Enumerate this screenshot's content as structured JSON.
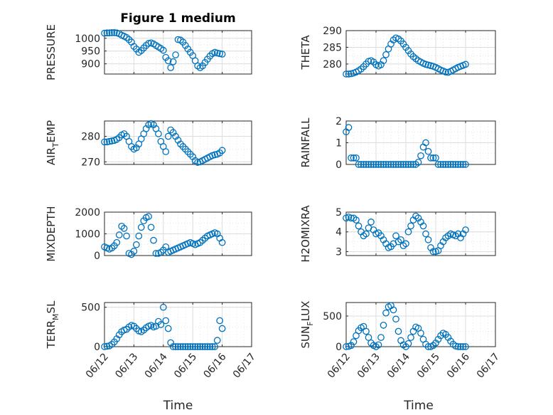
{
  "figure": {
    "title": "Figure 1 medium",
    "xlabel": "Time",
    "x_tick_labels": [
      "06/12",
      "06/13",
      "06/14",
      "06/15",
      "06/16",
      "06/17"
    ],
    "marker_color": "#0072bd"
  },
  "chart_data": [
    {
      "type": "scatter",
      "title": "Figure 1 medium",
      "ylabel": "PRESSURE",
      "yticks": [
        900,
        950,
        1000
      ],
      "ylim": [
        860,
        1030
      ],
      "x": [
        "06/12 00:00",
        "06/12 02:00",
        "06/12 04:00",
        "06/12 06:00",
        "06/12 08:00",
        "06/12 10:00",
        "06/12 12:00",
        "06/12 14:00",
        "06/12 16:00",
        "06/12 18:00",
        "06/12 20:00",
        "06/12 22:00",
        "06/13 00:00",
        "06/13 02:00",
        "06/13 04:00",
        "06/13 06:00",
        "06/13 08:00",
        "06/13 10:00",
        "06/13 12:00",
        "06/13 14:00",
        "06/13 16:00",
        "06/13 18:00",
        "06/13 20:00",
        "06/13 22:00",
        "06/14 00:00",
        "06/14 02:00",
        "06/14 04:00",
        "06/14 06:00",
        "06/14 08:00",
        "06/14 10:00",
        "06/14 12:00",
        "06/14 14:00",
        "06/14 16:00",
        "06/14 18:00",
        "06/14 20:00",
        "06/14 22:00",
        "06/15 00:00",
        "06/15 02:00",
        "06/15 04:00",
        "06/15 06:00",
        "06/15 08:00",
        "06/15 10:00",
        "06/15 12:00",
        "06/15 14:00",
        "06/15 16:00",
        "06/15 18:00",
        "06/15 20:00",
        "06/15 22:00",
        "06/16 00:00"
      ],
      "y": [
        1020,
        1021,
        1021,
        1022,
        1022,
        1021,
        1018,
        1012,
        1008,
        1003,
        995,
        985,
        968,
        958,
        945,
        952,
        962,
        972,
        980,
        982,
        978,
        972,
        966,
        960,
        953,
        925,
        912,
        885,
        908,
        935,
        995,
        993,
        985,
        972,
        958,
        945,
        932,
        912,
        892,
        885,
        892,
        905,
        918,
        930,
        940,
        945,
        942,
        940,
        938
      ]
    },
    {
      "type": "scatter",
      "title": "",
      "ylabel": "THETA",
      "yticks": [
        280,
        285,
        290
      ],
      "ylim": [
        277,
        290
      ],
      "x": [
        "06/12 00:00",
        "06/12 02:00",
        "06/12 04:00",
        "06/12 06:00",
        "06/12 08:00",
        "06/12 10:00",
        "06/12 12:00",
        "06/12 14:00",
        "06/12 16:00",
        "06/12 18:00",
        "06/12 20:00",
        "06/12 22:00",
        "06/13 00:00",
        "06/13 02:00",
        "06/13 04:00",
        "06/13 06:00",
        "06/13 08:00",
        "06/13 10:00",
        "06/13 12:00",
        "06/13 14:00",
        "06/13 16:00",
        "06/13 18:00",
        "06/13 20:00",
        "06/13 22:00",
        "06/14 00:00",
        "06/14 02:00",
        "06/14 04:00",
        "06/14 06:00",
        "06/14 08:00",
        "06/14 10:00",
        "06/14 12:00",
        "06/14 14:00",
        "06/14 16:00",
        "06/14 18:00",
        "06/14 20:00",
        "06/14 22:00",
        "06/15 00:00",
        "06/15 02:00",
        "06/15 04:00",
        "06/15 06:00",
        "06/15 08:00",
        "06/15 10:00",
        "06/15 12:00",
        "06/15 14:00",
        "06/15 16:00",
        "06/15 18:00",
        "06/15 20:00",
        "06/15 22:00",
        "06/16 00:00"
      ],
      "y": [
        277.0,
        277.0,
        277.1,
        277.3,
        277.6,
        278.0,
        278.5,
        279.2,
        280.0,
        280.8,
        281.0,
        280.6,
        279.8,
        279.4,
        279.8,
        281.0,
        282.8,
        284.5,
        286.0,
        287.2,
        287.8,
        287.5,
        286.9,
        286.0,
        285.0,
        284.0,
        283.0,
        282.2,
        281.6,
        281.0,
        280.6,
        280.2,
        279.9,
        279.7,
        279.5,
        279.3,
        279.0,
        278.6,
        278.2,
        277.9,
        277.6,
        277.5,
        277.8,
        278.2,
        278.6,
        279.0,
        279.3,
        279.6,
        279.9
      ]
    },
    {
      "type": "scatter",
      "title": "",
      "ylabel": "AIR_TEMP",
      "yticks": [
        270,
        280
      ],
      "ylim": [
        269,
        286
      ],
      "x": [
        "06/12 00:00",
        "06/12 02:00",
        "06/12 04:00",
        "06/12 06:00",
        "06/12 08:00",
        "06/12 10:00",
        "06/12 12:00",
        "06/12 14:00",
        "06/12 16:00",
        "06/12 18:00",
        "06/12 20:00",
        "06/12 22:00",
        "06/13 00:00",
        "06/13 02:00",
        "06/13 04:00",
        "06/13 06:00",
        "06/13 08:00",
        "06/13 10:00",
        "06/13 12:00",
        "06/13 14:00",
        "06/13 16:00",
        "06/13 18:00",
        "06/13 20:00",
        "06/13 22:00",
        "06/14 00:00",
        "06/14 02:00",
        "06/14 04:00",
        "06/14 06:00",
        "06/14 08:00",
        "06/14 10:00",
        "06/14 12:00",
        "06/14 14:00",
        "06/14 16:00",
        "06/14 18:00",
        "06/14 20:00",
        "06/14 22:00",
        "06/15 00:00",
        "06/15 02:00",
        "06/15 04:00",
        "06/15 06:00",
        "06/15 08:00",
        "06/15 10:00",
        "06/15 12:00",
        "06/15 14:00",
        "06/15 16:00",
        "06/15 18:00",
        "06/15 20:00",
        "06/15 22:00",
        "06/16 00:00"
      ],
      "y": [
        277.8,
        277.8,
        278.0,
        278.2,
        278.4,
        278.8,
        279.5,
        280.5,
        281.0,
        280.0,
        278.0,
        276.0,
        275.0,
        275.5,
        277.0,
        279.0,
        281.0,
        283.0,
        284.5,
        285.0,
        284.5,
        283.0,
        281.0,
        278.0,
        276.0,
        274.0,
        280.0,
        282.5,
        281.5,
        280.0,
        278.5,
        277.0,
        276.0,
        275.0,
        274.0,
        273.0,
        272.0,
        270.5,
        269.8,
        270.0,
        270.5,
        271.0,
        271.5,
        272.0,
        272.5,
        272.8,
        273.0,
        273.5,
        274.5
      ]
    },
    {
      "type": "scatter",
      "title": "",
      "ylabel": "RAINFALL",
      "yticks": [
        0,
        1,
        2
      ],
      "ylim": [
        0,
        2
      ],
      "x": [
        "06/12 00:00",
        "06/12 02:00",
        "06/12 04:00",
        "06/12 06:00",
        "06/12 08:00",
        "06/12 10:00",
        "06/12 12:00",
        "06/12 14:00",
        "06/12 16:00",
        "06/12 18:00",
        "06/12 20:00",
        "06/12 22:00",
        "06/13 00:00",
        "06/13 02:00",
        "06/13 04:00",
        "06/13 06:00",
        "06/13 08:00",
        "06/13 10:00",
        "06/13 12:00",
        "06/13 14:00",
        "06/13 16:00",
        "06/13 18:00",
        "06/13 20:00",
        "06/13 22:00",
        "06/14 00:00",
        "06/14 02:00",
        "06/14 04:00",
        "06/14 06:00",
        "06/14 08:00",
        "06/14 10:00",
        "06/14 12:00",
        "06/14 14:00",
        "06/14 16:00",
        "06/14 18:00",
        "06/14 20:00",
        "06/14 22:00",
        "06/15 00:00",
        "06/15 02:00",
        "06/15 04:00",
        "06/15 06:00",
        "06/15 08:00",
        "06/15 10:00",
        "06/15 12:00",
        "06/15 14:00",
        "06/15 16:00",
        "06/15 18:00",
        "06/15 20:00",
        "06/15 22:00",
        "06/16 00:00"
      ],
      "y": [
        1.5,
        1.7,
        0.3,
        0.3,
        0.3,
        0,
        0,
        0,
        0,
        0,
        0,
        0,
        0,
        0,
        0,
        0,
        0,
        0,
        0,
        0,
        0,
        0,
        0,
        0,
        0,
        0,
        0,
        0,
        0,
        0.1,
        0.4,
        0.8,
        1.0,
        0.6,
        0.3,
        0.3,
        0.3,
        0,
        0,
        0,
        0,
        0,
        0,
        0,
        0,
        0,
        0,
        0,
        0
      ]
    },
    {
      "type": "scatter",
      "title": "",
      "ylabel": "MIXDEPTH",
      "yticks": [
        0,
        1000,
        2000
      ],
      "ylim": [
        0,
        2000
      ],
      "x": [
        "06/12 00:00",
        "06/12 02:00",
        "06/12 04:00",
        "06/12 06:00",
        "06/12 08:00",
        "06/12 10:00",
        "06/12 12:00",
        "06/12 14:00",
        "06/12 16:00",
        "06/12 18:00",
        "06/12 20:00",
        "06/12 22:00",
        "06/13 00:00",
        "06/13 02:00",
        "06/13 04:00",
        "06/13 06:00",
        "06/13 08:00",
        "06/13 10:00",
        "06/13 12:00",
        "06/13 14:00",
        "06/13 16:00",
        "06/13 18:00",
        "06/13 20:00",
        "06/13 22:00",
        "06/14 00:00",
        "06/14 02:00",
        "06/14 04:00",
        "06/14 06:00",
        "06/14 08:00",
        "06/14 10:00",
        "06/14 12:00",
        "06/14 14:00",
        "06/14 16:00",
        "06/14 18:00",
        "06/14 20:00",
        "06/14 22:00",
        "06/15 00:00",
        "06/15 02:00",
        "06/15 04:00",
        "06/15 06:00",
        "06/15 08:00",
        "06/15 10:00",
        "06/15 12:00",
        "06/15 14:00",
        "06/15 16:00",
        "06/15 18:00",
        "06/15 20:00",
        "06/15 22:00",
        "06/16 00:00"
      ],
      "y": [
        400,
        350,
        300,
        350,
        450,
        600,
        950,
        1350,
        1250,
        900,
        100,
        50,
        200,
        500,
        900,
        1300,
        1600,
        1750,
        1800,
        1300,
        700,
        100,
        100,
        150,
        250,
        400,
        150,
        200,
        250,
        300,
        350,
        400,
        450,
        500,
        550,
        600,
        550,
        500,
        550,
        600,
        700,
        800,
        900,
        950,
        1000,
        1050,
        1000,
        800,
        600
      ]
    },
    {
      "type": "scatter",
      "title": "",
      "ylabel": "H2OMIXRA",
      "yticks": [
        3,
        4,
        5
      ],
      "ylim": [
        2.8,
        5
      ],
      "x": [
        "06/12 00:00",
        "06/12 02:00",
        "06/12 04:00",
        "06/12 06:00",
        "06/12 08:00",
        "06/12 10:00",
        "06/12 12:00",
        "06/12 14:00",
        "06/12 16:00",
        "06/12 18:00",
        "06/12 20:00",
        "06/12 22:00",
        "06/13 00:00",
        "06/13 02:00",
        "06/13 04:00",
        "06/13 06:00",
        "06/13 08:00",
        "06/13 10:00",
        "06/13 12:00",
        "06/13 14:00",
        "06/13 16:00",
        "06/13 18:00",
        "06/13 20:00",
        "06/13 22:00",
        "06/14 00:00",
        "06/14 02:00",
        "06/14 04:00",
        "06/14 06:00",
        "06/14 08:00",
        "06/14 10:00",
        "06/14 12:00",
        "06/14 14:00",
        "06/14 16:00",
        "06/14 18:00",
        "06/14 20:00",
        "06/14 22:00",
        "06/15 00:00",
        "06/15 02:00",
        "06/15 04:00",
        "06/15 06:00",
        "06/15 08:00",
        "06/15 10:00",
        "06/15 12:00",
        "06/15 14:00",
        "06/15 16:00",
        "06/15 18:00",
        "06/15 20:00",
        "06/15 22:00",
        "06/16 00:00"
      ],
      "y": [
        4.7,
        4.75,
        4.7,
        4.7,
        4.6,
        4.3,
        4.0,
        3.8,
        3.9,
        4.2,
        4.5,
        4.1,
        3.9,
        3.95,
        3.8,
        3.6,
        3.4,
        3.2,
        3.25,
        3.4,
        3.8,
        3.5,
        3.6,
        3.3,
        3.4,
        4.0,
        4.3,
        4.6,
        4.8,
        4.7,
        4.5,
        4.3,
        3.9,
        3.6,
        3.2,
        3.0,
        3.0,
        3.05,
        3.3,
        3.5,
        3.7,
        3.8,
        3.9,
        3.85,
        3.8,
        3.9,
        3.7,
        3.9,
        4.1
      ]
    },
    {
      "type": "scatter",
      "title": "",
      "ylabel": "TERR_MSL",
      "yticks": [
        0,
        500
      ],
      "ylim": [
        0,
        560
      ],
      "x": [
        "06/12 00:00",
        "06/12 02:00",
        "06/12 04:00",
        "06/12 06:00",
        "06/12 08:00",
        "06/12 10:00",
        "06/12 12:00",
        "06/12 14:00",
        "06/12 16:00",
        "06/12 18:00",
        "06/12 20:00",
        "06/12 22:00",
        "06/13 00:00",
        "06/13 02:00",
        "06/13 04:00",
        "06/13 06:00",
        "06/13 08:00",
        "06/13 10:00",
        "06/13 12:00",
        "06/13 14:00",
        "06/13 16:00",
        "06/13 18:00",
        "06/13 20:00",
        "06/13 22:00",
        "06/14 00:00",
        "06/14 02:00",
        "06/14 04:00",
        "06/14 06:00",
        "06/14 08:00",
        "06/14 10:00",
        "06/14 12:00",
        "06/14 14:00",
        "06/14 16:00",
        "06/14 18:00",
        "06/14 20:00",
        "06/14 22:00",
        "06/15 00:00",
        "06/15 02:00",
        "06/15 04:00",
        "06/15 06:00",
        "06/15 08:00",
        "06/15 10:00",
        "06/15 12:00",
        "06/15 14:00",
        "06/15 16:00",
        "06/15 18:00",
        "06/15 20:00",
        "06/15 22:00",
        "06/16 00:00"
      ],
      "y": [
        0,
        5,
        10,
        30,
        60,
        100,
        150,
        190,
        210,
        220,
        250,
        270,
        260,
        230,
        200,
        190,
        210,
        240,
        260,
        270,
        250,
        260,
        320,
        280,
        500,
        330,
        230,
        50,
        0,
        0,
        0,
        0,
        0,
        0,
        0,
        0,
        0,
        0,
        0,
        0,
        0,
        0,
        0,
        0,
        0,
        0,
        80,
        330,
        230
      ]
    },
    {
      "type": "scatter",
      "title": "",
      "ylabel": "SUN_FLUX",
      "yticks": [
        0,
        500
      ],
      "ylim": [
        0,
        720
      ],
      "x": [
        "06/12 00:00",
        "06/12 02:00",
        "06/12 04:00",
        "06/12 06:00",
        "06/12 08:00",
        "06/12 10:00",
        "06/12 12:00",
        "06/12 14:00",
        "06/12 16:00",
        "06/12 18:00",
        "06/12 20:00",
        "06/12 22:00",
        "06/13 00:00",
        "06/13 02:00",
        "06/13 04:00",
        "06/13 06:00",
        "06/13 08:00",
        "06/13 10:00",
        "06/13 12:00",
        "06/13 14:00",
        "06/13 16:00",
        "06/13 18:00",
        "06/13 20:00",
        "06/13 22:00",
        "06/14 00:00",
        "06/14 02:00",
        "06/14 04:00",
        "06/14 06:00",
        "06/14 08:00",
        "06/14 10:00",
        "06/14 12:00",
        "06/14 14:00",
        "06/14 16:00",
        "06/14 18:00",
        "06/14 20:00",
        "06/14 22:00",
        "06/15 00:00",
        "06/15 02:00",
        "06/15 04:00",
        "06/15 06:00",
        "06/15 08:00",
        "06/15 10:00",
        "06/15 12:00",
        "06/15 14:00",
        "06/15 16:00",
        "06/15 18:00",
        "06/15 20:00",
        "06/15 22:00",
        "06/16 00:00"
      ],
      "y": [
        0,
        5,
        20,
        80,
        180,
        260,
        310,
        330,
        250,
        150,
        60,
        20,
        0,
        30,
        150,
        350,
        550,
        650,
        670,
        600,
        450,
        250,
        100,
        30,
        0,
        50,
        150,
        250,
        320,
        300,
        220,
        120,
        40,
        0,
        0,
        20,
        60,
        120,
        180,
        220,
        200,
        150,
        90,
        40,
        10,
        0,
        0,
        0,
        0
      ]
    }
  ]
}
